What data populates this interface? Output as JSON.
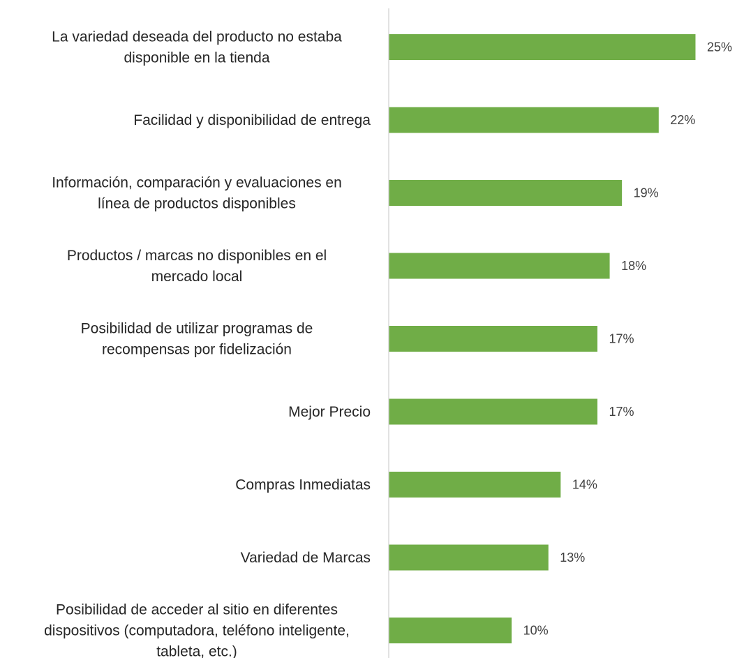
{
  "chart_data": {
    "type": "bar",
    "orientation": "horizontal",
    "title": "",
    "xlabel": "",
    "ylabel": "",
    "bar_color": "#70ad47",
    "axis_color": "#d9d9d9",
    "xlim": [
      0,
      25
    ],
    "grid": false,
    "legend": "none",
    "value_suffix": "%",
    "categories": [
      [
        "La variedad deseada del producto no estaba",
        "disponible en la tienda"
      ],
      [
        "Facilidad y disponibilidad de entrega"
      ],
      [
        "Información, comparación y evaluaciones en",
        "línea de productos disponibles"
      ],
      [
        "Productos / marcas no disponibles en el",
        "mercado local"
      ],
      [
        "Posibilidad de utilizar programas de",
        "recompensas por fidelización"
      ],
      [
        "Mejor Precio"
      ],
      [
        "Compras Inmediatas"
      ],
      [
        "Variedad de Marcas"
      ],
      [
        "Posibilidad de acceder al sitio en diferentes",
        "dispositivos (computadora, teléfono inteligente,",
        "tableta, etc.)"
      ]
    ],
    "values": [
      25,
      22,
      19,
      18,
      17,
      17,
      14,
      13,
      10
    ],
    "value_labels": [
      "25%",
      "22%",
      "19%",
      "18%",
      "17%",
      "17%",
      "14%",
      "13%",
      "10%"
    ]
  }
}
